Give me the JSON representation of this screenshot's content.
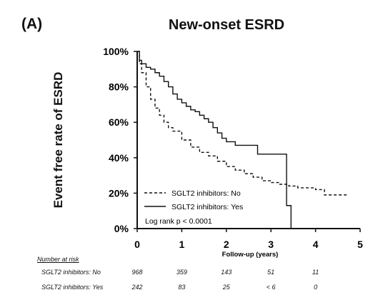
{
  "panel_label": "(A)",
  "chart_data": {
    "type": "line",
    "title": "New-onset ESRD",
    "ylabel": "Event free rate of ESRD",
    "xlabel": "Follow-up (years)",
    "xlim": [
      0,
      5
    ],
    "ylim": [
      0,
      100
    ],
    "x_ticks": [
      0,
      1,
      2,
      3,
      4,
      5
    ],
    "y_ticks": [
      0,
      20,
      40,
      60,
      80,
      100
    ],
    "y_tick_labels": [
      "0%",
      "20%",
      "40%",
      "60%",
      "80%",
      "100%"
    ],
    "x_tick_labels": [
      "0",
      "1",
      "2",
      "3",
      "4",
      "5"
    ],
    "grid": false,
    "legend_position": "bottom-left",
    "series": [
      {
        "name": "SGLT2 inhibitors: No",
        "style": "dashed",
        "color": "#111111",
        "x": [
          0,
          0.05,
          0.1,
          0.2,
          0.3,
          0.4,
          0.5,
          0.6,
          0.7,
          0.8,
          1.0,
          1.2,
          1.4,
          1.6,
          1.8,
          2.0,
          2.2,
          2.4,
          2.6,
          2.8,
          3.0,
          3.2,
          3.4,
          3.6,
          3.8,
          4.0,
          4.2,
          4.4,
          4.7
        ],
        "y": [
          100,
          93,
          88,
          80,
          73,
          68,
          64,
          60,
          57,
          55,
          50,
          46,
          43,
          41,
          38,
          35,
          33,
          31,
          29,
          27,
          26,
          25,
          24,
          23,
          23,
          22,
          19,
          19,
          19
        ]
      },
      {
        "name": "SGLT2 inhibitors: Yes",
        "style": "solid",
        "color": "#111111",
        "x": [
          0,
          0.05,
          0.1,
          0.2,
          0.3,
          0.4,
          0.5,
          0.6,
          0.7,
          0.8,
          0.9,
          1.0,
          1.1,
          1.2,
          1.3,
          1.4,
          1.5,
          1.6,
          1.7,
          1.8,
          1.9,
          2.0,
          2.2,
          2.4,
          2.6,
          2.7,
          2.9,
          3.1,
          3.27,
          3.35,
          3.45
        ],
        "y": [
          100,
          95,
          93,
          91,
          90,
          88,
          86,
          83,
          80,
          76,
          73,
          71,
          69,
          67,
          66,
          64,
          62,
          60,
          57,
          54,
          51,
          49,
          47,
          47,
          47,
          42,
          42,
          42,
          42,
          13,
          0
        ]
      }
    ],
    "annotation": "Log rank p < 0.0001"
  },
  "risk_table": {
    "title": "Number at risk",
    "x": [
      0,
      1,
      2,
      3,
      4
    ],
    "rows": [
      {
        "label": "SGLT2 inhibitors: No",
        "values": [
          "968",
          "359",
          "143",
          "51",
          "11"
        ]
      },
      {
        "label": "SGLT2 inhibitors: Yes",
        "values": [
          "242",
          "83",
          "25",
          "< 6",
          "0"
        ]
      }
    ]
  }
}
